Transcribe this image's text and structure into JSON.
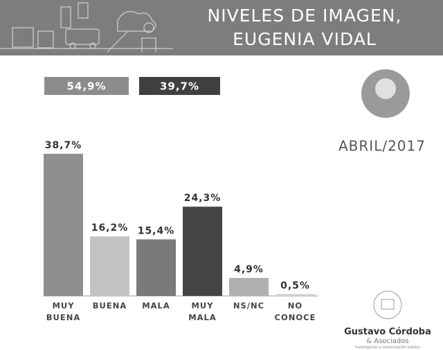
{
  "chart_data": {
    "type": "bar",
    "title": [
      "NIVELES DE IMAGEN,",
      "EUGENIA VIDAL"
    ],
    "date": "ABRIL/2017",
    "summary": [
      {
        "value": 54.9,
        "label": "54,9%",
        "color": "#8c8c8c"
      },
      {
        "value": 39.7,
        "label": "39,7%",
        "color": "#404040"
      }
    ],
    "categories": [
      "MUY BUENA",
      "BUENA",
      "MALA",
      "MUY MALA",
      "NS/NC",
      "NO CONOCE"
    ],
    "values": [
      38.7,
      16.2,
      15.4,
      24.3,
      4.9,
      0.5
    ],
    "value_labels": [
      "38,7%",
      "16,2%",
      "15,4%",
      "24,3%",
      "4,9%",
      "0,5%"
    ],
    "colors": [
      "#8f8f8f",
      "#c2c2c2",
      "#7a7a7a",
      "#454545",
      "#b0b0b0",
      "#d0d0d0"
    ],
    "logo": {
      "name": "Gustavo Córdoba",
      "sub": "& Asociados",
      "tagline": "Investigación y comunicación pública"
    }
  }
}
